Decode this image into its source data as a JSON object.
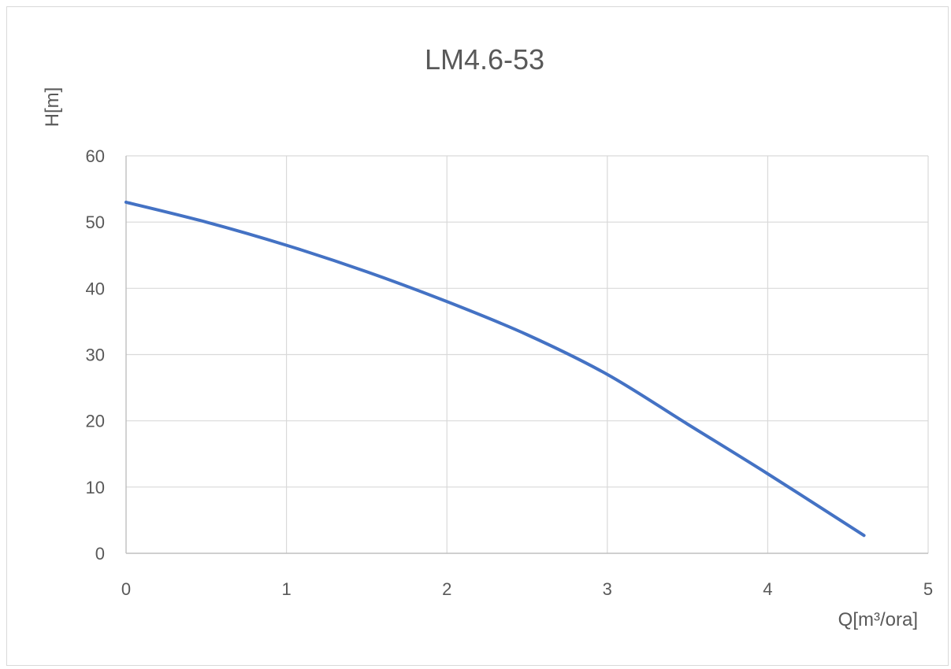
{
  "chart_data": {
    "type": "line",
    "title": "LM4.6-53",
    "xlabel": "Q[m³/ora]",
    "ylabel": "H[m]",
    "xlim": [
      0,
      5
    ],
    "ylim": [
      0,
      60
    ],
    "x_ticks": [
      "0",
      "1",
      "2",
      "3",
      "4",
      "5"
    ],
    "y_ticks": [
      "0",
      "10",
      "20",
      "30",
      "40",
      "50",
      "60"
    ],
    "grid": true,
    "series": [
      {
        "color": "#4472c4",
        "x": [
          0,
          0.5,
          1.0,
          1.5,
          2.0,
          2.5,
          3.0,
          3.5,
          4.0,
          4.6
        ],
        "y": [
          53,
          50,
          46.5,
          42.5,
          38,
          33,
          27,
          19.5,
          12,
          2.7
        ]
      }
    ]
  }
}
